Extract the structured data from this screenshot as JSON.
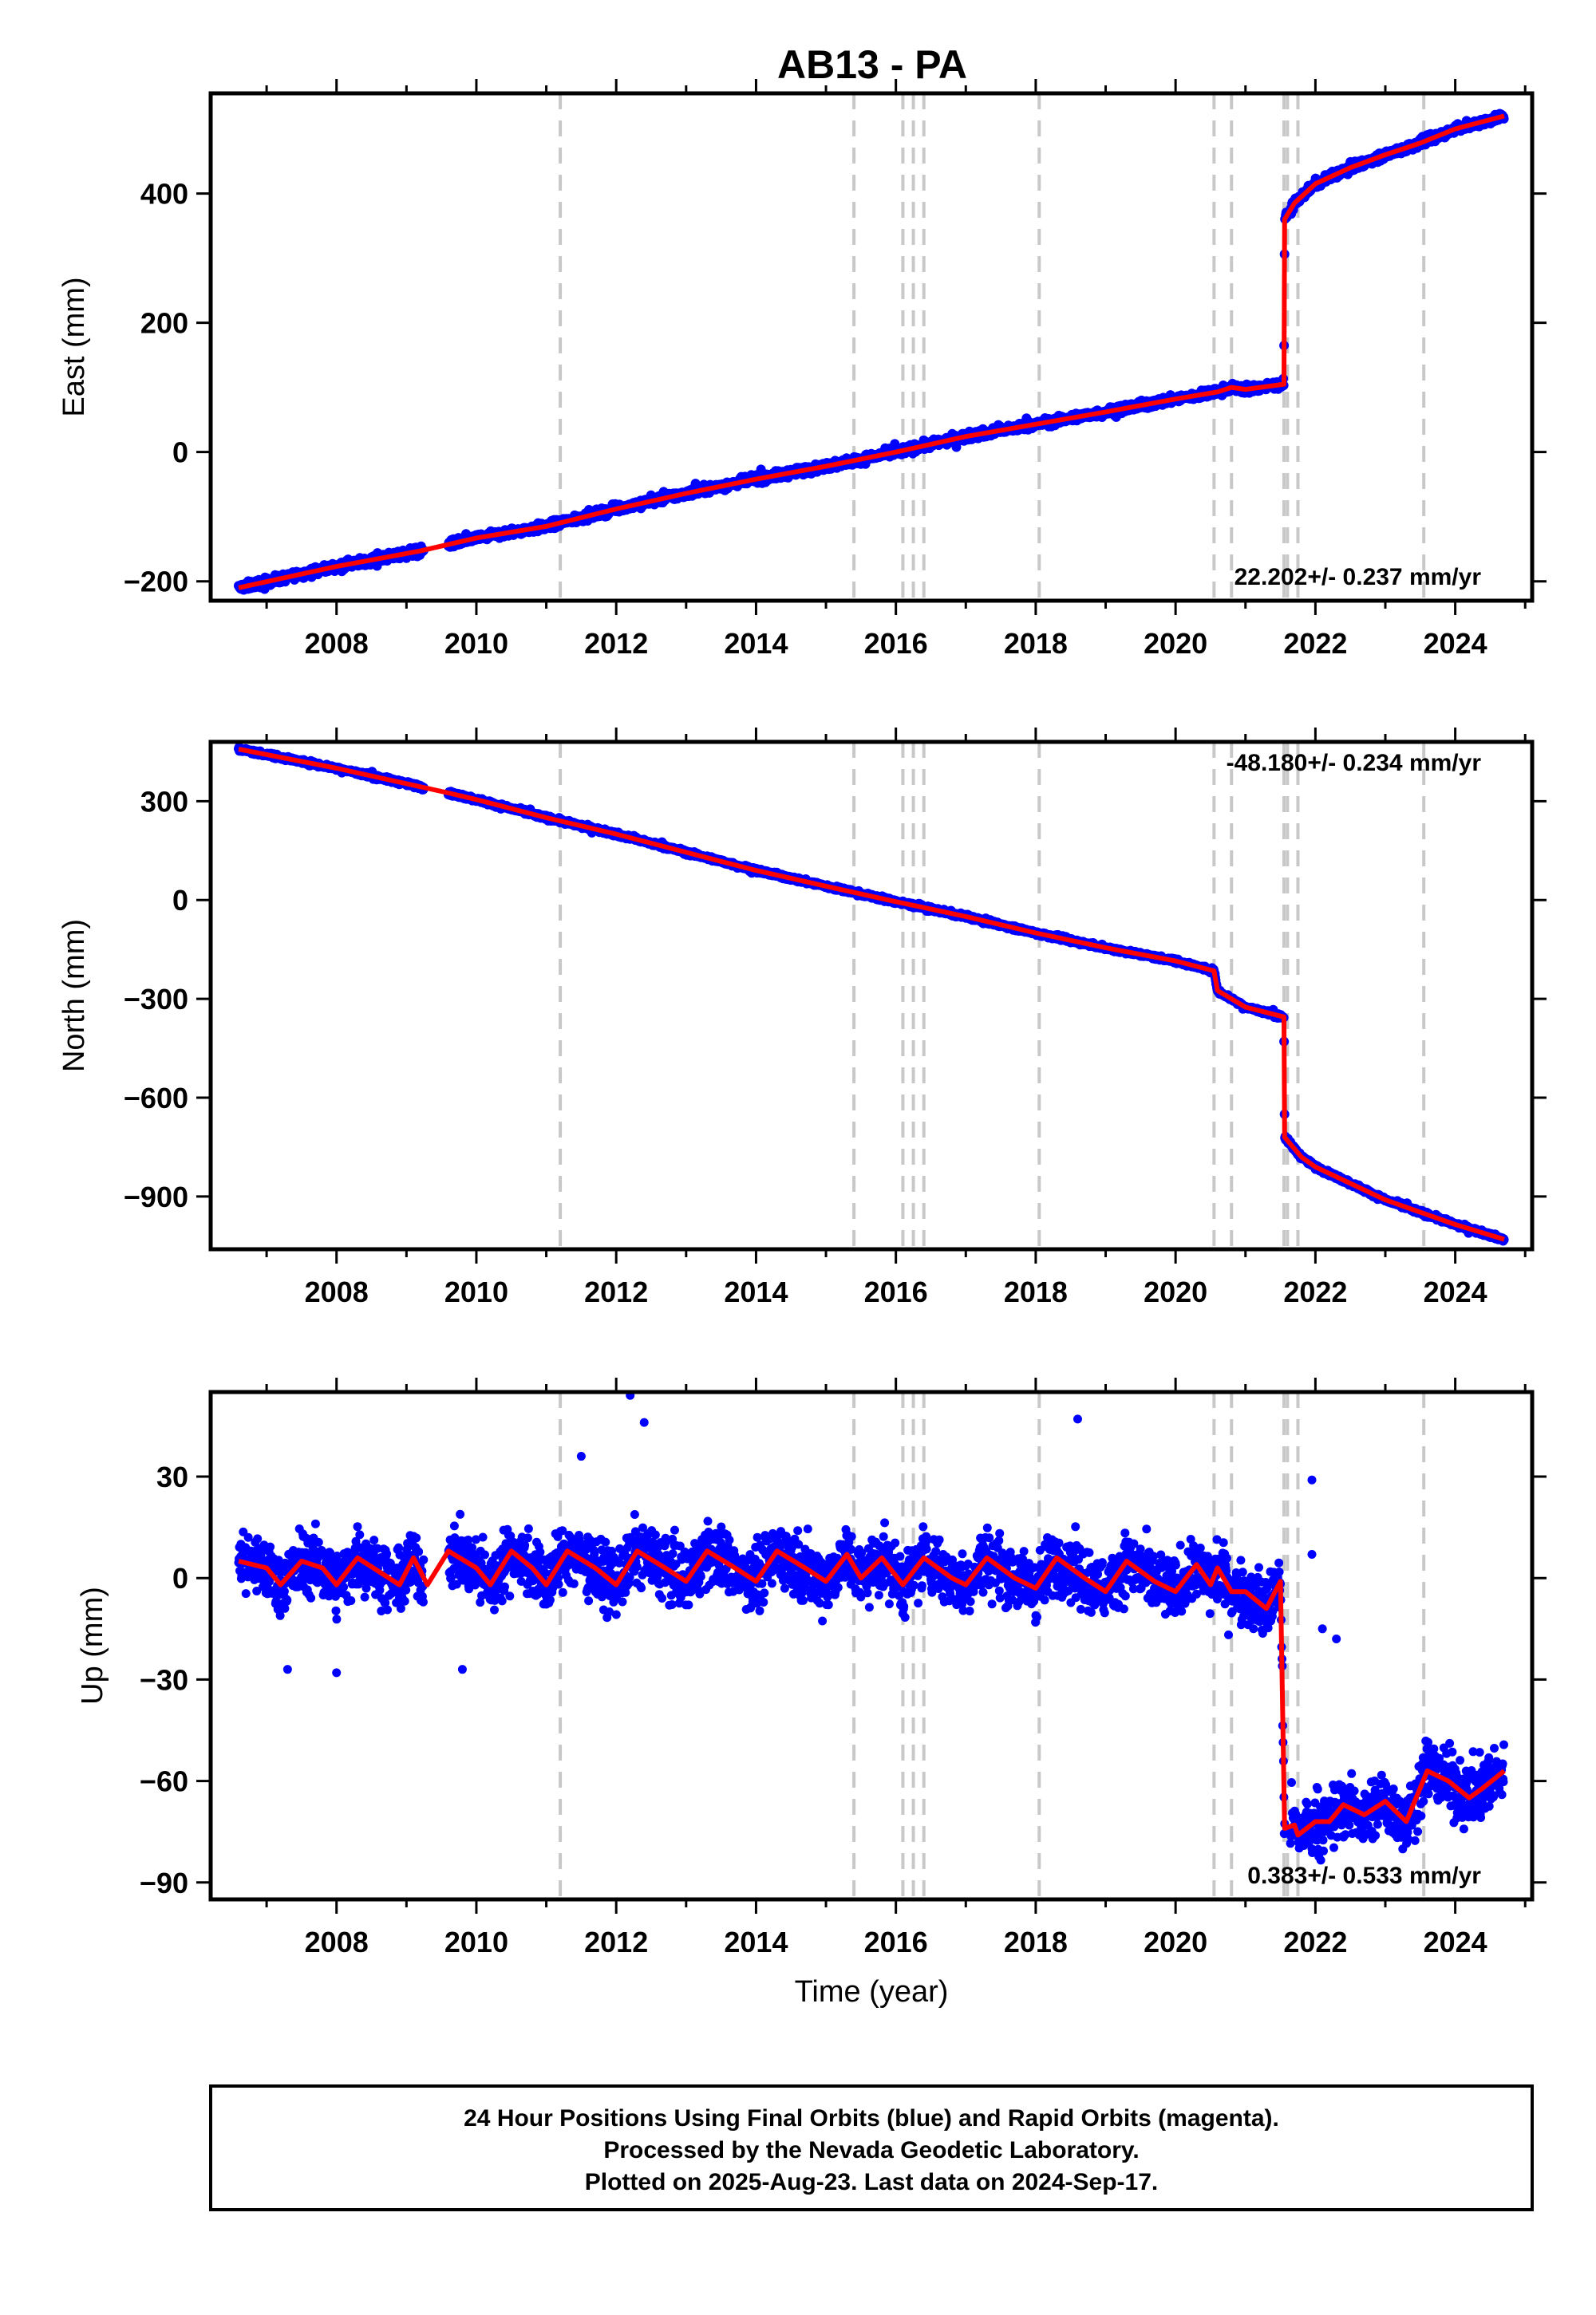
{
  "title": "AB13 - PA",
  "footer": {
    "lines": [
      "24 Hour Positions Using Final Orbits (blue) and Rapid Orbits (magenta).",
      "Processed by the Nevada Geodetic Laboratory.",
      "Plotted on 2025-Aug-23. Last data on 2024-Sep-17."
    ]
  },
  "colors": {
    "points": "#0000ff",
    "model": "#ff0000",
    "events": "#c8c8c8",
    "frame": "#000000"
  },
  "chart_data": [
    {
      "type": "scatter",
      "name": "east",
      "ylabel": "East (mm)",
      "xlabel": "",
      "xlim": [
        2006.2,
        2025.1
      ],
      "ylim": [
        -230,
        555
      ],
      "yticks": [
        -200,
        0,
        200,
        400
      ],
      "xticks": [
        2008,
        2010,
        2012,
        2014,
        2016,
        2018,
        2020,
        2022,
        2024
      ],
      "rate_label": "22.202+/- 0.237 mm/yr",
      "rate_position": "bottom-right",
      "model_line": [
        [
          2006.6,
          -210
        ],
        [
          2008,
          -177
        ],
        [
          2009.2,
          -153
        ],
        [
          2010,
          -133
        ],
        [
          2011,
          -115
        ],
        [
          2012,
          -88
        ],
        [
          2013,
          -64
        ],
        [
          2014,
          -42
        ],
        [
          2015,
          -22
        ],
        [
          2016,
          0
        ],
        [
          2017,
          24
        ],
        [
          2018,
          43
        ],
        [
          2019,
          62
        ],
        [
          2020,
          82
        ],
        [
          2020.6,
          93
        ],
        [
          2020.8,
          100
        ],
        [
          2021,
          97
        ],
        [
          2021.55,
          105
        ],
        [
          2021.56,
          360
        ],
        [
          2021.7,
          385
        ],
        [
          2022,
          415
        ],
        [
          2022.5,
          440
        ],
        [
          2023,
          460
        ],
        [
          2023.5,
          478
        ],
        [
          2024,
          500
        ],
        [
          2024.7,
          520
        ]
      ],
      "series": [
        {
          "values_generated_from": "model_line"
        }
      ]
    },
    {
      "type": "scatter",
      "name": "north",
      "ylabel": "North (mm)",
      "xlabel": "",
      "xlim": [
        2006.2,
        2025.1
      ],
      "ylim": [
        -1060,
        480
      ],
      "yticks": [
        -900,
        -600,
        -300,
        0,
        300
      ],
      "xticks": [
        2008,
        2010,
        2012,
        2014,
        2016,
        2018,
        2020,
        2022,
        2024
      ],
      "rate_label": "-48.180+/- 0.234 mm/yr",
      "rate_position": "top-right",
      "model_line": [
        [
          2006.6,
          458
        ],
        [
          2008,
          400
        ],
        [
          2009.6,
          325
        ],
        [
          2010,
          305
        ],
        [
          2011,
          250
        ],
        [
          2012,
          200
        ],
        [
          2013,
          145
        ],
        [
          2014,
          90
        ],
        [
          2015,
          42
        ],
        [
          2016,
          -5
        ],
        [
          2017,
          -50
        ],
        [
          2018,
          -100
        ],
        [
          2019,
          -145
        ],
        [
          2020,
          -185
        ],
        [
          2020.55,
          -215
        ],
        [
          2020.6,
          -275
        ],
        [
          2021,
          -325
        ],
        [
          2021.55,
          -355
        ],
        [
          2021.56,
          -720
        ],
        [
          2021.8,
          -780
        ],
        [
          2022,
          -810
        ],
        [
          2023,
          -910
        ],
        [
          2024,
          -985
        ],
        [
          2024.7,
          -1030
        ]
      ]
    },
    {
      "type": "scatter",
      "name": "up",
      "ylabel": "Up (mm)",
      "xlabel": "Time (year)",
      "xlim": [
        2006.2,
        2025.1
      ],
      "ylim": [
        -95,
        55
      ],
      "yticks": [
        -90,
        -60,
        -30,
        0,
        30
      ],
      "xticks": [
        2008,
        2010,
        2012,
        2014,
        2016,
        2018,
        2020,
        2022,
        2024
      ],
      "rate_label": "0.383+/- 0.533 mm/yr",
      "rate_position": "bottom-right",
      "model_line": [
        [
          2006.6,
          5
        ],
        [
          2007,
          3
        ],
        [
          2007.2,
          -2
        ],
        [
          2007.5,
          5
        ],
        [
          2007.8,
          3
        ],
        [
          2008,
          -2
        ],
        [
          2008.3,
          6
        ],
        [
          2008.6,
          2
        ],
        [
          2008.9,
          -2
        ],
        [
          2009.1,
          6
        ],
        [
          2009.3,
          -2
        ],
        [
          2009.6,
          8
        ],
        [
          2010,
          3
        ],
        [
          2010.2,
          -2
        ],
        [
          2010.5,
          8
        ],
        [
          2010.8,
          3
        ],
        [
          2011,
          -2
        ],
        [
          2011.3,
          8
        ],
        [
          2011.7,
          3
        ],
        [
          2012,
          -2
        ],
        [
          2012.3,
          8
        ],
        [
          2012.7,
          3
        ],
        [
          2013,
          -1
        ],
        [
          2013.3,
          8
        ],
        [
          2013.7,
          3
        ],
        [
          2014,
          -1
        ],
        [
          2014.3,
          8
        ],
        [
          2014.7,
          3
        ],
        [
          2015,
          -1
        ],
        [
          2015.3,
          7
        ],
        [
          2015.5,
          0
        ],
        [
          2015.8,
          6
        ],
        [
          2016.1,
          -2
        ],
        [
          2016.4,
          6
        ],
        [
          2016.8,
          0
        ],
        [
          2017,
          -2
        ],
        [
          2017.3,
          6
        ],
        [
          2017.7,
          0
        ],
        [
          2018,
          -3
        ],
        [
          2018.3,
          6
        ],
        [
          2018.7,
          0
        ],
        [
          2019,
          -4
        ],
        [
          2019.3,
          5
        ],
        [
          2019.7,
          -1
        ],
        [
          2020,
          -4
        ],
        [
          2020.3,
          4
        ],
        [
          2020.5,
          -2
        ],
        [
          2020.6,
          3
        ],
        [
          2020.8,
          -4
        ],
        [
          2021,
          -4
        ],
        [
          2021.3,
          -9
        ],
        [
          2021.5,
          -1
        ],
        [
          2021.56,
          -74
        ],
        [
          2021.7,
          -73
        ],
        [
          2021.75,
          -76
        ],
        [
          2022,
          -72
        ],
        [
          2022.2,
          -72
        ],
        [
          2022.4,
          -67
        ],
        [
          2022.7,
          -70
        ],
        [
          2023,
          -66
        ],
        [
          2023.3,
          -72
        ],
        [
          2023.6,
          -57
        ],
        [
          2023.9,
          -60
        ],
        [
          2024.2,
          -65
        ],
        [
          2024.4,
          -62
        ],
        [
          2024.7,
          -57
        ]
      ],
      "outliers": [
        [
          2012.2,
          54
        ],
        [
          2012.4,
          46
        ],
        [
          2018.6,
          47
        ],
        [
          2011.5,
          36
        ],
        [
          2021.95,
          29
        ],
        [
          2021.95,
          7
        ],
        [
          2022.1,
          -15
        ],
        [
          2022.3,
          -18
        ],
        [
          2007.3,
          -27
        ],
        [
          2008,
          -28
        ],
        [
          2009.8,
          -27
        ]
      ]
    }
  ],
  "event_lines": [
    2011.2,
    2015.4,
    2016.1,
    2016.25,
    2016.4,
    2018.05,
    2020.55,
    2020.8,
    2021.55,
    2021.6,
    2021.75,
    2023.55
  ]
}
